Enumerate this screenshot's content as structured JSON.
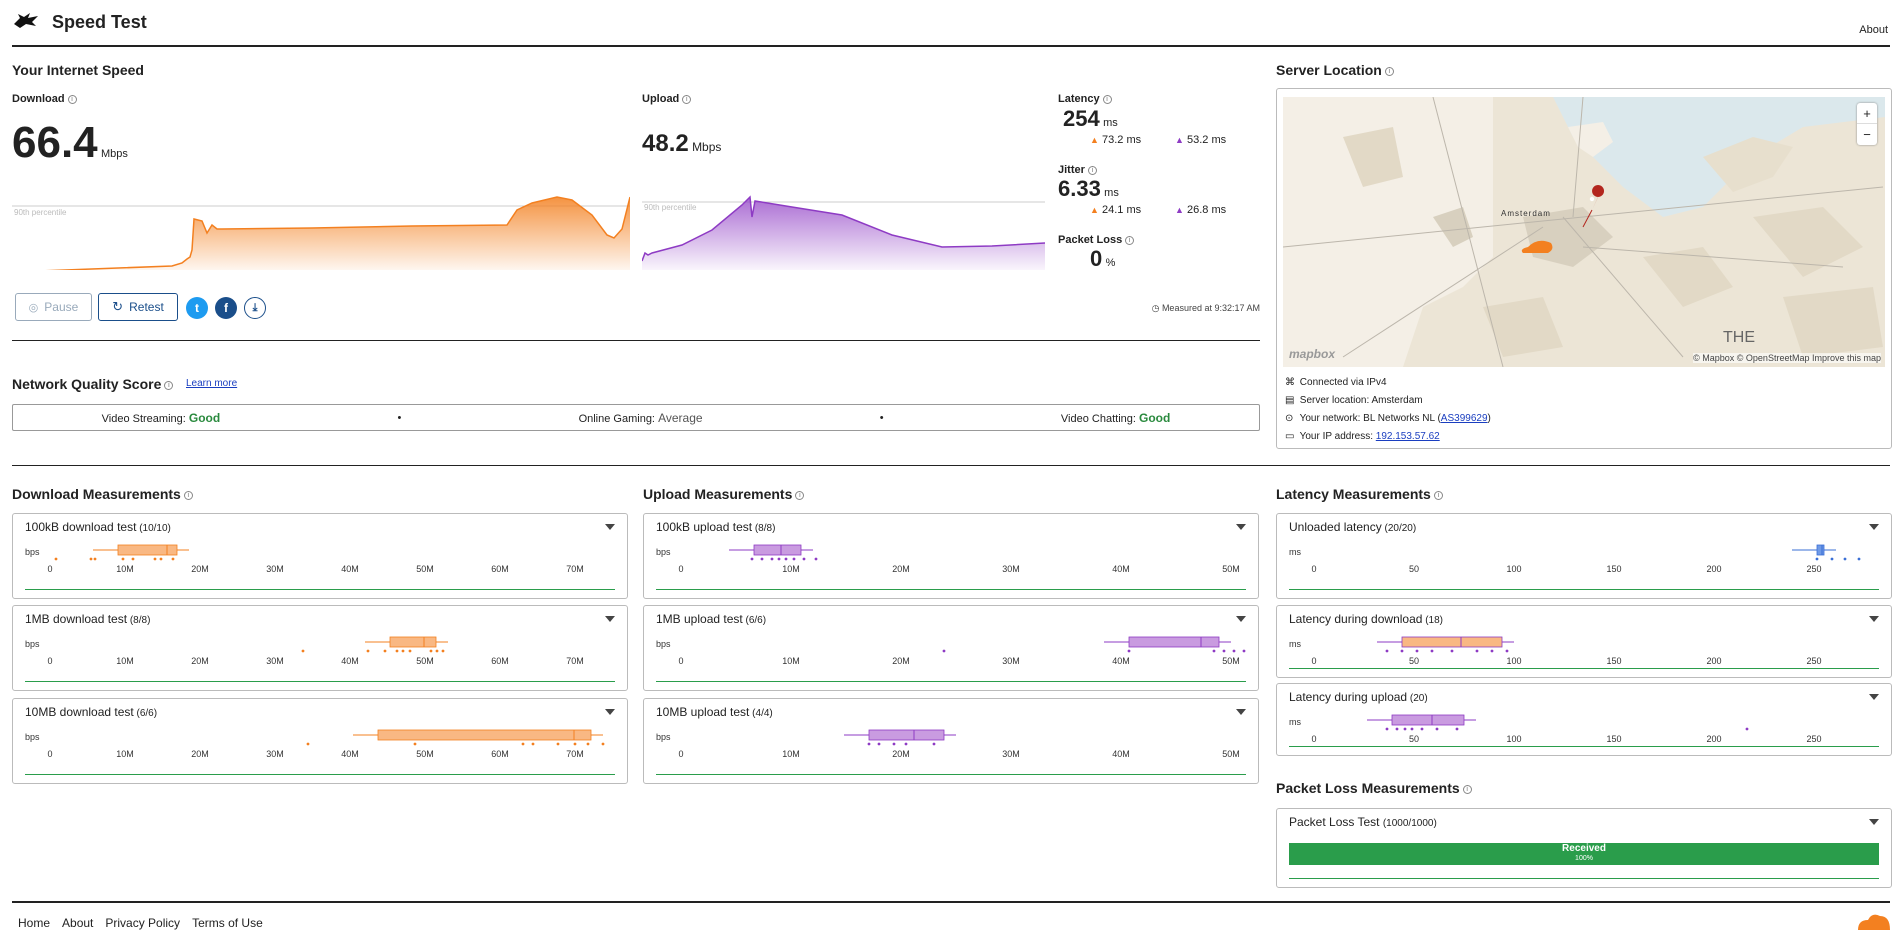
{
  "header": {
    "title": "Speed Test",
    "about": "About"
  },
  "speed": {
    "section_title": "Your Internet Speed",
    "download": {
      "label": "Download",
      "value": "66.4",
      "unit": "Mbps",
      "percentile": "90th percentile"
    },
    "upload": {
      "label": "Upload",
      "value": "48.2",
      "unit": "Mbps",
      "percentile": "90th percentile"
    },
    "latency": {
      "label": "Latency",
      "value": "254",
      "unit": "ms",
      "down": "73.2 ms",
      "up": "53.2 ms"
    },
    "jitter": {
      "label": "Jitter",
      "value": "6.33",
      "unit": "ms",
      "down": "24.1 ms",
      "up": "26.8 ms"
    },
    "packet_loss": {
      "label": "Packet Loss",
      "value": "0",
      "unit": "%"
    },
    "pause": "Pause",
    "retest": "Retest",
    "measured": "Measured at 9:32:17 AM"
  },
  "network_quality": {
    "title": "Network Quality Score",
    "learn_more": "Learn more",
    "items": [
      {
        "label": "Video Streaming:",
        "value": "Good"
      },
      {
        "label": "Online Gaming:",
        "value": "Average"
      },
      {
        "label": "Video Chatting:",
        "value": "Good"
      }
    ]
  },
  "server": {
    "title": "Server Location",
    "map": {
      "city": "Amsterdam",
      "region_label": "THE",
      "mapbox": "mapbox",
      "credits": "© Mapbox © OpenStreetMap Improve this map",
      "zoom_in": "+",
      "zoom_out": "−"
    },
    "connected": "Connected via IPv4",
    "location_label": "Server location:",
    "location": "Amsterdam",
    "network_label": "Your network:",
    "network": "BL Networks NL (",
    "asn": "AS399629",
    "network_end": ")",
    "ip_label": "Your IP address:",
    "ip": "192.153.57.62"
  },
  "download_measurements": {
    "title": "Download Measurements",
    "unit": "bps",
    "ticks": [
      "0",
      "10M",
      "20M",
      "30M",
      "40M",
      "50M",
      "60M",
      "70M"
    ],
    "tests": [
      {
        "name": "100kB download test",
        "count": "(10/10)"
      },
      {
        "name": "1MB download test",
        "count": "(8/8)"
      },
      {
        "name": "10MB download test",
        "count": "(6/6)"
      }
    ]
  },
  "upload_measurements": {
    "title": "Upload Measurements",
    "unit": "bps",
    "ticks": [
      "0",
      "10M",
      "20M",
      "30M",
      "40M",
      "50M"
    ],
    "tests": [
      {
        "name": "100kB upload test",
        "count": "(8/8)"
      },
      {
        "name": "1MB upload test",
        "count": "(6/6)"
      },
      {
        "name": "10MB upload test",
        "count": "(4/4)"
      }
    ]
  },
  "latency_measurements": {
    "title": "Latency Measurements",
    "unit": "ms",
    "ticks": [
      "0",
      "50",
      "100",
      "150",
      "200",
      "250"
    ],
    "tests": [
      {
        "name": "Unloaded latency",
        "count": "(20/20)"
      },
      {
        "name": "Latency during download",
        "count": "(18)"
      },
      {
        "name": "Latency during upload",
        "count": "(20)"
      }
    ]
  },
  "packet_loss_measurements": {
    "title": "Packet Loss Measurements",
    "test": {
      "name": "Packet Loss Test",
      "count": "(1000/1000)"
    },
    "bar_label": "Received",
    "bar_percent": "100%",
    "received_fraction": 1.0
  },
  "footer": {
    "links": [
      "Home",
      "About",
      "Privacy Policy",
      "Terms of Use"
    ]
  },
  "colors": {
    "orange": "#f38020",
    "purple": "#8e3bc4",
    "green": "#2a9d4b",
    "blue": "#1a4e8a"
  }
}
